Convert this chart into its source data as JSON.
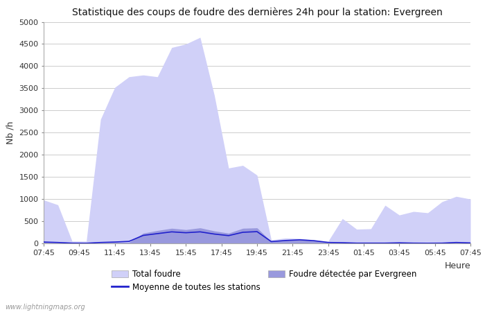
{
  "title": "Statistique des coups de foudre des dernières 24h pour la station: Evergreen",
  "xlabel": "Heure",
  "ylabel": "Nb /h",
  "watermark": "www.lightningmaps.org",
  "ylim": [
    0,
    5000
  ],
  "yticks": [
    0,
    500,
    1000,
    1500,
    2000,
    2500,
    3000,
    3500,
    4000,
    4500,
    5000
  ],
  "xtick_labels": [
    "07:45",
    "09:45",
    "11:45",
    "13:45",
    "15:45",
    "17:45",
    "19:45",
    "21:45",
    "23:45",
    "01:45",
    "03:45",
    "05:45",
    "07:45"
  ],
  "total_foudre_color": "#d0d0f8",
  "foudre_evergreen_color": "#9999dd",
  "line_color": "#2020cc",
  "background_color": "#ffffff",
  "grid_color": "#cccccc",
  "legend_labels": [
    "Total foudre",
    "Moyenne de toutes les stations",
    "Foudre détectée par Evergreen"
  ],
  "total_foudre": [
    980,
    870,
    50,
    50,
    2800,
    3520,
    3760,
    3800,
    3760,
    4420,
    4500,
    4650,
    3340,
    1700,
    1760,
    1540,
    80,
    120,
    110,
    80,
    50,
    560,
    320,
    330,
    860,
    640,
    720,
    690,
    940,
    1060,
    1000
  ],
  "foudre_evergreen": [
    20,
    15,
    5,
    3,
    15,
    20,
    25,
    230,
    290,
    340,
    310,
    350,
    280,
    230,
    340,
    350,
    40,
    70,
    90,
    60,
    15,
    10,
    5,
    5,
    5,
    10,
    5,
    3,
    5,
    20,
    10
  ],
  "moyenne_stations": [
    30,
    20,
    5,
    3,
    20,
    30,
    45,
    180,
    220,
    260,
    240,
    260,
    210,
    175,
    250,
    265,
    40,
    65,
    80,
    60,
    20,
    15,
    5,
    5,
    5,
    12,
    5,
    3,
    5,
    20,
    10
  ],
  "n_points": 31
}
